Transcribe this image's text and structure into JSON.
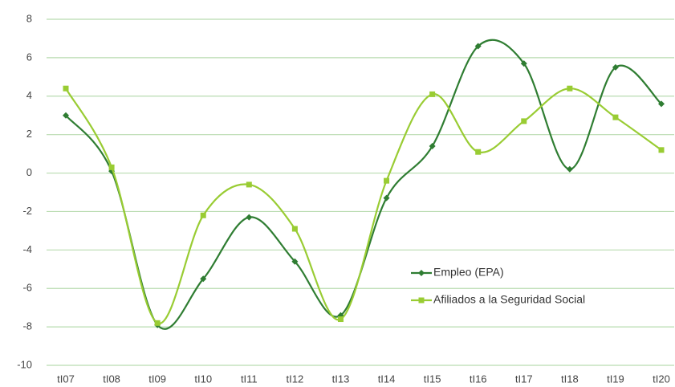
{
  "chart_data": {
    "type": "line",
    "categories": [
      "tI07",
      "tI08",
      "tI09",
      "tI10",
      "tI11",
      "tI12",
      "tI13",
      "tI14",
      "tI15",
      "tI16",
      "tI17",
      "tI18",
      "tI19",
      "tI20"
    ],
    "series": [
      {
        "name": "Empleo (EPA)",
        "color": "#2f7d32",
        "marker": "diamond",
        "values": [
          3.0,
          0.1,
          -7.9,
          -5.5,
          -2.3,
          -4.6,
          -7.4,
          -1.3,
          1.4,
          6.6,
          5.7,
          0.2,
          5.5,
          3.6
        ]
      },
      {
        "name": "Afiliados a la Seguridad Social",
        "color": "#99cc33",
        "marker": "square",
        "values": [
          4.4,
          0.3,
          -7.8,
          -2.2,
          -0.6,
          -2.9,
          -7.6,
          -0.4,
          4.1,
          1.1,
          2.7,
          4.4,
          2.9,
          1.2
        ]
      }
    ],
    "ylim": [
      -10,
      8
    ],
    "yticks": [
      -10,
      -8,
      -6,
      -4,
      -2,
      0,
      2,
      4,
      6,
      8
    ],
    "grid": true,
    "smooth": true
  }
}
